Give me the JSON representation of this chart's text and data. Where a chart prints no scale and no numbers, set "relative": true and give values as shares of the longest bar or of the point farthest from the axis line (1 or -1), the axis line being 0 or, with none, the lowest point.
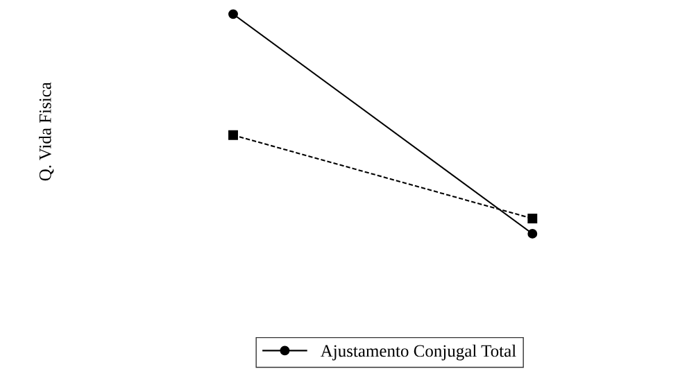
{
  "chart_data": {
    "type": "line",
    "ylabel": "Q. Vida Fisica",
    "categories": [
      null,
      null
    ],
    "relative": true,
    "legend": "bottom",
    "series": [
      {
        "name": "Ajustamento Conjugal Total",
        "color": "#000000",
        "values": [
          1,
          0
        ],
        "marker": "circle",
        "line_style": "solid"
      },
      {
        "color": "#000000",
        "values": [
          0.449,
          0.069
        ],
        "marker": "square",
        "line_style": "dashed"
      }
    ]
  }
}
